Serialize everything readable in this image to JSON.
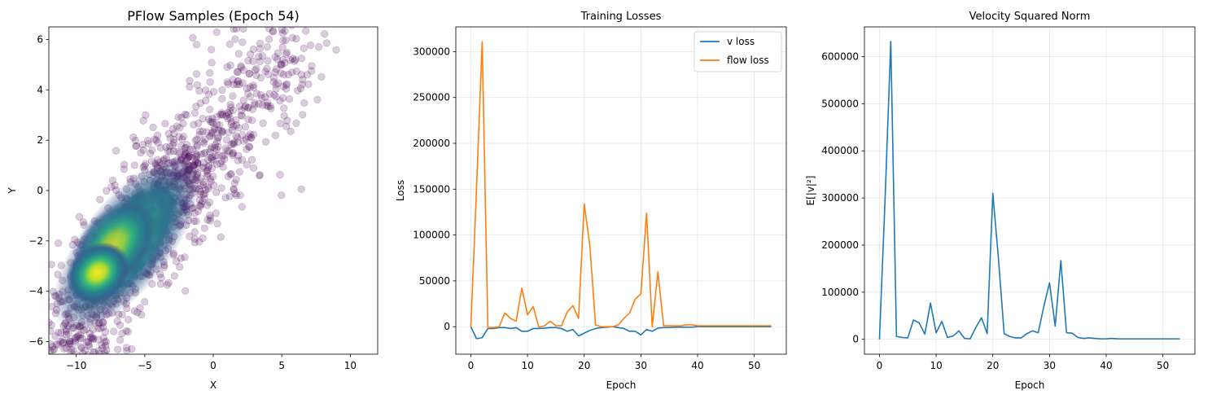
{
  "chart_data": [
    {
      "type": "scatter",
      "title": "PFlow Samples (Epoch 54)",
      "xlabel": "X",
      "ylabel": "Y",
      "xlim": [
        -12,
        12
      ],
      "ylim": [
        -6.5,
        6.5
      ],
      "xticks": [
        -10,
        -5,
        0,
        5,
        10
      ],
      "yticks": [
        -6,
        -4,
        -2,
        0,
        2,
        4,
        6
      ],
      "grid": false,
      "point_color": "#440154",
      "point_alpha": 0.2,
      "density_colormap": "viridis",
      "density_peak": [
        -7.8,
        -3.3
      ]
    },
    {
      "type": "line",
      "title": "Training Losses",
      "xlabel": "Epoch",
      "ylabel": "Loss",
      "xlim": [
        -2.65,
        55.65
      ],
      "ylim": [
        -30000,
        327000
      ],
      "xticks": [
        0,
        10,
        20,
        30,
        40,
        50
      ],
      "yticks": [
        0,
        50000,
        100000,
        150000,
        200000,
        250000,
        300000
      ],
      "grid": true,
      "legend": "top-right",
      "x": [
        0,
        1,
        2,
        3,
        4,
        5,
        6,
        7,
        8,
        9,
        10,
        11,
        12,
        13,
        14,
        15,
        16,
        17,
        18,
        19,
        20,
        21,
        22,
        23,
        24,
        25,
        26,
        27,
        28,
        29,
        30,
        31,
        32,
        33,
        34,
        35,
        36,
        37,
        38,
        39,
        40,
        41,
        42,
        43,
        44,
        45,
        46,
        47,
        48,
        49,
        50,
        51,
        52,
        53
      ],
      "series": [
        {
          "name": "v loss",
          "color": "#1f77b4",
          "values": [
            0,
            -13000,
            -12000,
            -2000,
            -2000,
            -1000,
            -1000,
            -2000,
            -1000,
            -5000,
            -5000,
            -2000,
            -2000,
            -1500,
            -1000,
            -1000,
            -2000,
            -5000,
            -3000,
            -10000,
            -7000,
            -4000,
            -2000,
            -1000,
            -500,
            0,
            -1000,
            -2000,
            -5000,
            -5000,
            -9000,
            -3000,
            -5000,
            -1500,
            -1000,
            -1000,
            -500,
            -500,
            -500,
            -500,
            0,
            0,
            0,
            0,
            0,
            0,
            0,
            0,
            0,
            0,
            0,
            0,
            0,
            0
          ]
        },
        {
          "name": "flow loss",
          "color": "#ff7f0e",
          "values": [
            0,
            150000,
            311000,
            -1000,
            -1000,
            0,
            15000,
            9000,
            6000,
            42000,
            13000,
            22000,
            -500,
            1000,
            6000,
            1000,
            1000,
            16000,
            23000,
            9000,
            134000,
            88000,
            2000,
            0,
            0,
            0,
            2000,
            9000,
            15000,
            30000,
            36000,
            124000,
            0,
            60000,
            1000,
            1000,
            1000,
            1000,
            2000,
            2000,
            1000,
            1000,
            1000,
            1000,
            1000,
            1000,
            1000,
            1000,
            1000,
            1000,
            1000,
            1000,
            1000,
            1000
          ]
        }
      ]
    },
    {
      "type": "line",
      "title": "Velocity Squared Norm",
      "xlabel": "Epoch",
      "ylabel": "E[|v|²]",
      "xlim": [
        -2.65,
        55.65
      ],
      "ylim": [
        -31600,
        663000
      ],
      "xticks": [
        0,
        10,
        20,
        30,
        40,
        50
      ],
      "yticks": [
        0,
        100000,
        200000,
        300000,
        400000,
        500000,
        600000
      ],
      "grid": true,
      "x": [
        0,
        1,
        2,
        3,
        4,
        5,
        6,
        7,
        8,
        9,
        10,
        11,
        12,
        13,
        14,
        15,
        16,
        17,
        18,
        19,
        20,
        21,
        22,
        23,
        24,
        25,
        26,
        27,
        28,
        29,
        30,
        31,
        32,
        33,
        34,
        35,
        36,
        37,
        38,
        39,
        40,
        41,
        42,
        43,
        44,
        45,
        46,
        47,
        48,
        49,
        50,
        51,
        52,
        53
      ],
      "series": [
        {
          "color": "#1f77b4",
          "values": [
            0,
            300000,
            632000,
            6000,
            4000,
            3000,
            41000,
            35000,
            11000,
            77000,
            14000,
            38000,
            4000,
            7000,
            18000,
            2000,
            1000,
            25000,
            46000,
            12000,
            310000,
            170000,
            12000,
            6000,
            3000,
            3000,
            12000,
            18000,
            14000,
            70000,
            120000,
            28000,
            167000,
            14000,
            13000,
            4000,
            2000,
            3000,
            2000,
            1000,
            1000,
            2000,
            1000,
            1000,
            1000,
            1000,
            1000,
            1000,
            1000,
            1000,
            1000,
            1000,
            1000,
            1000
          ]
        }
      ]
    }
  ]
}
